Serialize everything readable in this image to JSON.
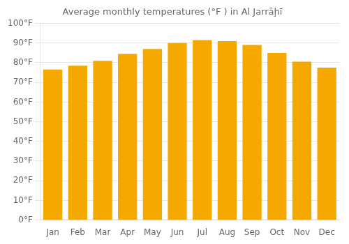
{
  "chart_data": {
    "type": "bar",
    "title": "Average monthly temperatures (°F ) in Al Jarrāḩī",
    "categories": [
      "Jan",
      "Feb",
      "Mar",
      "Apr",
      "May",
      "Jun",
      "Jul",
      "Aug",
      "Sep",
      "Oct",
      "Nov",
      "Dec"
    ],
    "values": [
      76.5,
      78.5,
      81,
      84.5,
      87,
      90,
      91.5,
      91,
      89,
      85,
      80.5,
      77.5
    ],
    "color": "#F5A800",
    "ylim": [
      0,
      100
    ],
    "yticks": [
      {
        "value": 0,
        "label": "0°F"
      },
      {
        "value": 10,
        "label": "10°F"
      },
      {
        "value": 20,
        "label": "20°F"
      },
      {
        "value": 30,
        "label": "30°F"
      },
      {
        "value": 40,
        "label": "40°F"
      },
      {
        "value": 50,
        "label": "50°F"
      },
      {
        "value": 60,
        "label": "60°F"
      },
      {
        "value": 70,
        "label": "70°F"
      },
      {
        "value": 80,
        "label": "80°F"
      },
      {
        "value": 90,
        "label": "90°F"
      },
      {
        "value": 100,
        "label": "100°F"
      }
    ],
    "grid": true
  }
}
